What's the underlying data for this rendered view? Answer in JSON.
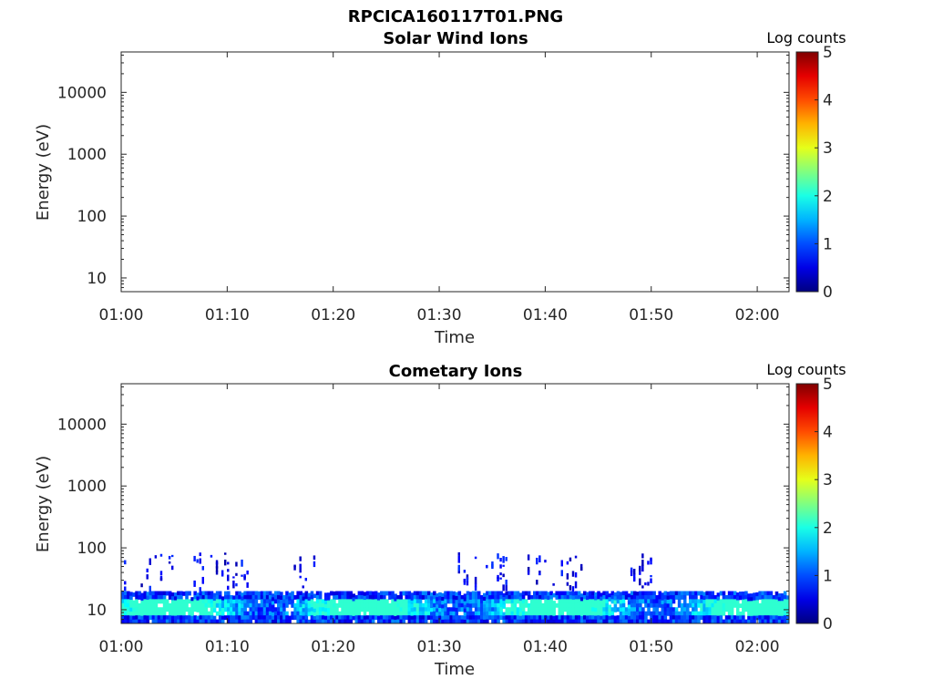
{
  "figure_title": "RPCICA160117T01.PNG",
  "chart_data": [
    {
      "type": "heatmap",
      "title": "Solar Wind Ions",
      "xlabel": "Time",
      "ylabel": "Energy (eV)",
      "y_scale": "log",
      "ylim": [
        6,
        45000
      ],
      "y_ticks": [
        10,
        100,
        1000,
        10000
      ],
      "y_tick_labels": [
        "10",
        "100",
        "1000",
        "10000"
      ],
      "x_range_minutes": [
        0,
        63
      ],
      "x_ticks": [
        0,
        10,
        20,
        30,
        40,
        50,
        60
      ],
      "x_tick_labels": [
        "01:00",
        "01:10",
        "01:20",
        "01:30",
        "01:40",
        "01:50",
        "02:00"
      ],
      "colorbar": {
        "label": "Log counts",
        "min": 0,
        "max": 5,
        "ticks": [
          "0",
          "1",
          "2",
          "3",
          "4",
          "5"
        ],
        "colormap": "jet"
      },
      "data_present": false
    },
    {
      "type": "heatmap",
      "title": "Cometary Ions",
      "xlabel": "Time",
      "ylabel": "Energy (eV)",
      "y_scale": "log",
      "ylim": [
        6,
        45000
      ],
      "y_ticks": [
        10,
        100,
        1000,
        10000
      ],
      "y_tick_labels": [
        "10",
        "100",
        "1000",
        "10000"
      ],
      "x_range_minutes": [
        0,
        63
      ],
      "x_ticks": [
        0,
        10,
        20,
        30,
        40,
        50,
        60
      ],
      "x_tick_labels": [
        "01:00",
        "01:10",
        "01:20",
        "01:30",
        "01:40",
        "01:50",
        "02:00"
      ],
      "colorbar": {
        "label": "Log counts",
        "min": 0,
        "max": 5,
        "ticks": [
          "0",
          "1",
          "2",
          "3",
          "4",
          "5"
        ],
        "colormap": "jet"
      },
      "data_present": true,
      "bands": [
        {
          "energy_range_eV": [
            6,
            20
          ],
          "log_counts_range": [
            0.5,
            2.0
          ],
          "coverage": "continuous"
        },
        {
          "energy_range_eV": [
            20,
            85
          ],
          "log_counts_range": [
            0.3,
            1.0
          ],
          "coverage": "sporadic"
        }
      ]
    }
  ]
}
